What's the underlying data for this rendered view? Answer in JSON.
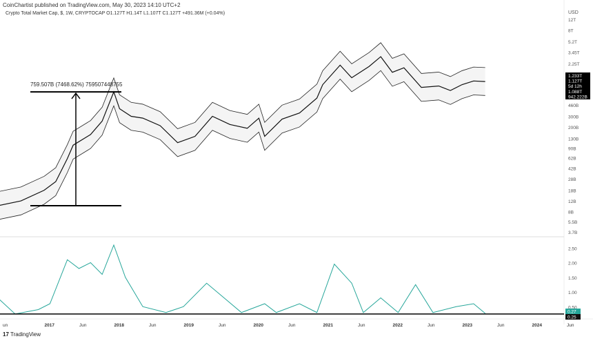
{
  "header": {
    "published": "CoinChartist published on TradingView.com, May 30, 2023 14:10 UTC+2",
    "symbol_line": "Crypto Total Market Cap, $, 1W, CRYPTOCAP  O1.127T  H1.14T  L1.107T  C1.127T  +491.36M (+0.04%)"
  },
  "footer": {
    "brand": "TradingView"
  },
  "chart_data": [
    {
      "type": "line",
      "scale": "log",
      "currency_label": "USD",
      "ytick_labels": [
        "12T",
        "8T",
        "5.2T",
        "3.45T",
        "2.25T",
        "460B",
        "300B",
        "200B",
        "130B",
        "90B",
        "62B",
        "42B",
        "28B",
        "18B",
        "12B",
        "8B",
        "5.5B",
        "3.7B"
      ],
      "ytick_values_B": [
        12000,
        8000,
        5200,
        3450,
        2250,
        460,
        300,
        200,
        130,
        90,
        62,
        42,
        28,
        18,
        12,
        8,
        5.5,
        3.7
      ],
      "price_labels": [
        "1.233T",
        "1.127T",
        "5d 12h",
        "1.088T",
        "942.222B"
      ],
      "annotation": "759.507B (7468.62%) 759507448755",
      "x": [
        "2016-05",
        "2016-09",
        "2017-01",
        "2017-03",
        "2017-05",
        "2017-06",
        "2017-09",
        "2017-11",
        "2018-01",
        "2018-02",
        "2018-04",
        "2018-06",
        "2018-09",
        "2018-12",
        "2019-03",
        "2019-06",
        "2019-09",
        "2019-12",
        "2020-02",
        "2020-03",
        "2020-06",
        "2020-09",
        "2020-12",
        "2021-01",
        "2021-04",
        "2021-06",
        "2021-09",
        "2021-11",
        "2022-01",
        "2022-03",
        "2022-06",
        "2022-09",
        "2022-11",
        "2023-01",
        "2023-03",
        "2023-05"
      ],
      "series": [
        {
          "values": [
            10,
            12,
            18,
            25,
            60,
            100,
            150,
            250,
            760,
            400,
            300,
            280,
            210,
            110,
            140,
            300,
            220,
            190,
            280,
            140,
            270,
            340,
            600,
            1000,
            2100,
            1300,
            2000,
            2900,
            1600,
            1900,
            900,
            950,
            800,
            1000,
            1150,
            1127
          ]
        }
      ]
    },
    {
      "type": "line",
      "ytick_labels": [
        "2.50",
        "2.00",
        "1.50",
        "1.00",
        "0.50"
      ],
      "ytick_values": [
        2.5,
        2.0,
        1.5,
        1.0,
        0.5
      ],
      "last_value": "0.27",
      "hline_value": "0.25",
      "hline_label": "0.25",
      "line_color": "#26a69a",
      "x": [
        "2016-05",
        "2016-08",
        "2016-12",
        "2017-02",
        "2017-05",
        "2017-07",
        "2017-09",
        "2017-11",
        "2018-01",
        "2018-03",
        "2018-06",
        "2018-10",
        "2019-01",
        "2019-05",
        "2019-08",
        "2019-11",
        "2020-03",
        "2020-05",
        "2020-09",
        "2020-12",
        "2021-03",
        "2021-06",
        "2021-08",
        "2021-11",
        "2022-02",
        "2022-05",
        "2022-08",
        "2022-12",
        "2023-03",
        "2023-05"
      ],
      "values": [
        0.8,
        0.25,
        0.4,
        0.6,
        2.1,
        1.8,
        2.0,
        1.6,
        2.6,
        1.5,
        0.5,
        0.3,
        0.5,
        1.3,
        0.8,
        0.3,
        0.6,
        0.3,
        0.6,
        0.3,
        1.95,
        1.3,
        0.3,
        0.8,
        0.3,
        1.25,
        0.3,
        0.5,
        0.6,
        0.27
      ]
    },
    {
      "xtick_labels": [
        "un",
        "2017",
        "Jun",
        "2018",
        "Jun",
        "2019",
        "Jun",
        "2020",
        "Jun",
        "2021",
        "Jun",
        "2022",
        "Jun",
        "2023",
        "Jun",
        "2024",
        "Jun"
      ]
    }
  ]
}
